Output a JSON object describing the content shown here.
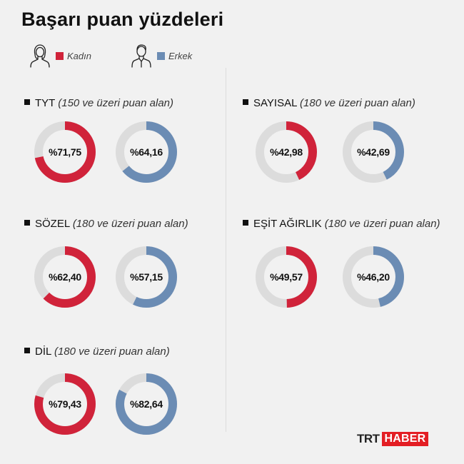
{
  "title": "Başarı puan yüzdeleri",
  "legend": [
    {
      "label": "Kadın",
      "color": "#d0233a",
      "icon": "woman-icon"
    },
    {
      "label": "Erkek",
      "color": "#6b8cb4",
      "icon": "man-icon"
    }
  ],
  "track_color": "#dcdcdc",
  "logo": {
    "trt": "TRT",
    "haber": "HABER"
  },
  "chart_data": [
    {
      "type": "donut",
      "title": "TYT",
      "subtitle": "(150 ve üzeri puan alan)",
      "series": [
        {
          "name": "Kadın",
          "value": 71.75,
          "label": "%71,75"
        },
        {
          "name": "Erkek",
          "value": 64.16,
          "label": "%64,16"
        }
      ]
    },
    {
      "type": "donut",
      "title": "SAYISAL",
      "subtitle": "(180 ve üzeri puan alan)",
      "series": [
        {
          "name": "Kadın",
          "value": 42.98,
          "label": "%42,98"
        },
        {
          "name": "Erkek",
          "value": 42.69,
          "label": "%42,69"
        }
      ]
    },
    {
      "type": "donut",
      "title": "SÖZEL",
      "subtitle": "(180 ve üzeri puan alan)",
      "series": [
        {
          "name": "Kadın",
          "value": 62.4,
          "label": "%62,40"
        },
        {
          "name": "Erkek",
          "value": 57.15,
          "label": "%57,15"
        }
      ]
    },
    {
      "type": "donut",
      "title": "EŞİT AĞIRLIK",
      "subtitle": "(180 ve üzeri puan alan)",
      "series": [
        {
          "name": "Kadın",
          "value": 49.57,
          "label": "%49,57"
        },
        {
          "name": "Erkek",
          "value": 46.2,
          "label": "%46,20"
        }
      ]
    },
    {
      "type": "donut",
      "title": "DİL",
      "subtitle": "(180 ve üzeri puan alan)",
      "series": [
        {
          "name": "Kadın",
          "value": 79.43,
          "label": "%79,43"
        },
        {
          "name": "Erkek",
          "value": 82.64,
          "label": "%82,64"
        }
      ]
    }
  ]
}
